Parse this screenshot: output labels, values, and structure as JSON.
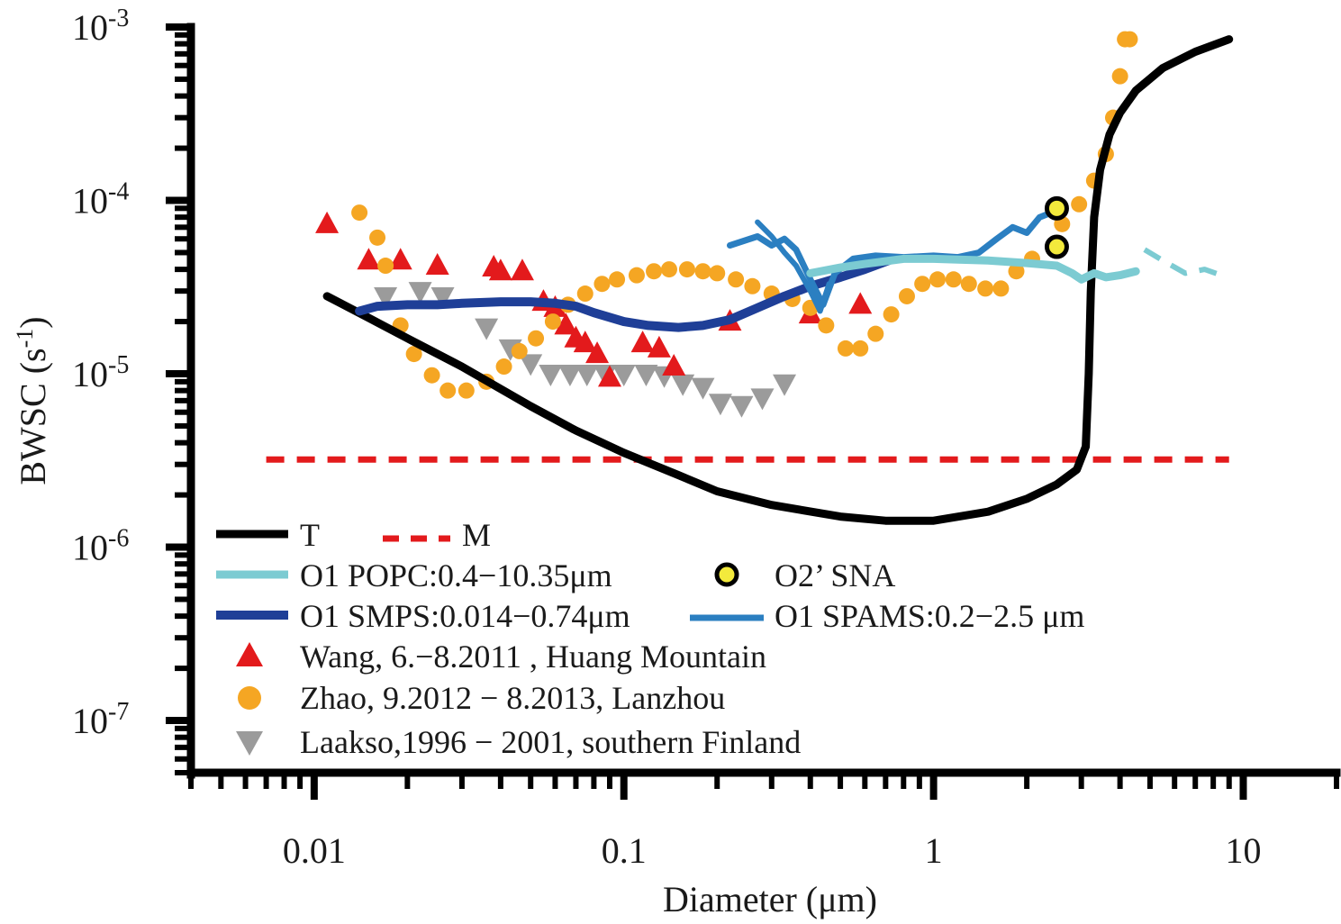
{
  "chart_data": {
    "type": "scatter",
    "title": "",
    "xlabel": "Diameter (μm)",
    "ylabel_main": "BWSC (s",
    "ylabel_sup": "-1",
    "ylabel_close": ")",
    "x_scale": "log",
    "y_scale": "log",
    "xlim": [
      0.004,
      20
    ],
    "ylim": [
      5e-08,
      0.001
    ],
    "x_ticks": [
      {
        "value": 0.01,
        "label": "0.01"
      },
      {
        "value": 0.1,
        "label": "0.1"
      },
      {
        "value": 1,
        "label": "1"
      },
      {
        "value": 10,
        "label": "10"
      }
    ],
    "y_ticks": [
      {
        "value": 1e-07,
        "base": "10",
        "exp": "-7"
      },
      {
        "value": 1e-06,
        "base": "10",
        "exp": "-6"
      },
      {
        "value": 1e-05,
        "base": "10",
        "exp": "-5"
      },
      {
        "value": 0.0001,
        "base": "10",
        "exp": "-4"
      },
      {
        "value": 0.001,
        "base": "10",
        "exp": "-3"
      }
    ],
    "grid": false,
    "legend_position": "bottom-left",
    "series": [
      {
        "key": "T",
        "name": "T",
        "kind": "line",
        "color": "#000000",
        "width": 9,
        "x": [
          0.011,
          0.015,
          0.02,
          0.03,
          0.05,
          0.07,
          0.1,
          0.15,
          0.2,
          0.3,
          0.5,
          0.7,
          1.0,
          1.5,
          2.0,
          2.5,
          2.9,
          3.1,
          3.17,
          3.22,
          3.3,
          3.45,
          3.7,
          4.0,
          4.5,
          5.5,
          7.0,
          9.0
        ],
        "y": [
          2.8e-05,
          2.1e-05,
          1.6e-05,
          1.1e-05,
          6.5e-06,
          4.7e-06,
          3.5e-06,
          2.6e-06,
          2.1e-06,
          1.75e-06,
          1.5e-06,
          1.42e-06,
          1.42e-06,
          1.6e-06,
          1.9e-06,
          2.3e-06,
          2.8e-06,
          3.8e-06,
          1e-05,
          3e-05,
          8e-05,
          0.00015,
          0.00024,
          0.00032,
          0.00043,
          0.00058,
          0.00072,
          0.00085
        ]
      },
      {
        "key": "M",
        "name": "M",
        "kind": "dashed",
        "color": "#e31a1c",
        "width": 7,
        "x": [
          0.007,
          9.0
        ],
        "y": [
          3.2e-06,
          3.2e-06
        ]
      },
      {
        "key": "POPC",
        "name": "O1 POPC:0.4−10.35μm",
        "kind": "line",
        "color": "#7ccbd2",
        "width": 9,
        "x": [
          0.4,
          0.5,
          0.6,
          0.8,
          1.0,
          1.2,
          1.5,
          2.0,
          2.5,
          2.8,
          3.0,
          3.3,
          3.6,
          4.0,
          4.5
        ],
        "y": [
          3.8e-05,
          4.1e-05,
          4.3e-05,
          4.6e-05,
          4.6e-05,
          4.55e-05,
          4.5e-05,
          4.35e-05,
          4.2e-05,
          3.8e-05,
          3.5e-05,
          3.8e-05,
          3.6e-05,
          3.7e-05,
          3.9e-05
        ]
      },
      {
        "key": "POPC_tail",
        "name": "",
        "kind": "dashed",
        "color": "#7ccbd2",
        "width": 6,
        "x": [
          4.8,
          5.5,
          6.5,
          7.5,
          8.5
        ],
        "y": [
          5.2e-05,
          4.5e-05,
          3.8e-05,
          4e-05,
          3.7e-05
        ]
      },
      {
        "key": "SMPS",
        "name": "O1 SMPS:0.014−0.74μm",
        "kind": "line",
        "color": "#1f3f97",
        "width": 10,
        "x": [
          0.014,
          0.016,
          0.02,
          0.025,
          0.03,
          0.04,
          0.05,
          0.06,
          0.07,
          0.08,
          0.1,
          0.12,
          0.15,
          0.18,
          0.22,
          0.27,
          0.33,
          0.4,
          0.5,
          0.6,
          0.74
        ],
        "y": [
          2.3e-05,
          2.45e-05,
          2.5e-05,
          2.5e-05,
          2.55e-05,
          2.6e-05,
          2.6e-05,
          2.55e-05,
          2.45e-05,
          2.25e-05,
          2e-05,
          1.9e-05,
          1.85e-05,
          1.9e-05,
          2.05e-05,
          2.4e-05,
          2.8e-05,
          3.2e-05,
          3.6e-05,
          4e-05,
          4.6e-05
        ]
      },
      {
        "key": "SPAMS",
        "name": "O1 SPAMS:0.2−2.5 μm",
        "kind": "line",
        "color": "#2b7fc1",
        "width": 7,
        "x": [
          0.22,
          0.27,
          0.3,
          0.33,
          0.36,
          0.4,
          0.44,
          0.48,
          0.55,
          0.65,
          0.8,
          1.0,
          1.2,
          1.4,
          1.6,
          1.8,
          2.0,
          2.2,
          2.4,
          2.5
        ],
        "y": [
          5.5e-05,
          6.2e-05,
          5.5e-05,
          6e-05,
          5.2e-05,
          3.5e-05,
          2.5e-05,
          3.8e-05,
          4.6e-05,
          4.8e-05,
          4.7e-05,
          4.8e-05,
          4.7e-05,
          5e-05,
          6e-05,
          7e-05,
          6.5e-05,
          8e-05,
          8.5e-05,
          9e-05
        ]
      },
      {
        "key": "SPAMS_b",
        "name": "",
        "kind": "line",
        "color": "#2b7fc1",
        "width": 6,
        "x": [
          0.27,
          0.3,
          0.33,
          0.36,
          0.4,
          0.43,
          0.46
        ],
        "y": [
          7.5e-05,
          6.2e-05,
          5e-05,
          4.2e-05,
          3e-05,
          2.3e-05,
          3.3e-05
        ]
      },
      {
        "key": "SNA",
        "name": "O2’ SNA",
        "kind": "circle",
        "color": "#f3ea3c",
        "stroke": "#000000",
        "x": [
          2.5,
          2.5
        ],
        "y": [
          9e-05,
          5.4e-05
        ]
      },
      {
        "key": "Wang",
        "name": "Wang, 6.−8.2011 , Huang Mountain",
        "kind": "triangle-up",
        "color": "#e31a1c",
        "x": [
          0.011,
          0.015,
          0.019,
          0.025,
          0.038,
          0.04,
          0.047,
          0.055,
          0.06,
          0.065,
          0.07,
          0.075,
          0.082,
          0.09,
          0.115,
          0.13,
          0.145,
          0.22,
          0.4,
          0.58
        ],
        "y": [
          7.3e-05,
          4.5e-05,
          4.5e-05,
          4.2e-05,
          4.1e-05,
          3.9e-05,
          3.9e-05,
          2.6e-05,
          2.4e-05,
          1.9e-05,
          1.6e-05,
          1.5e-05,
          1.3e-05,
          9.5e-06,
          1.5e-05,
          1.4e-05,
          1.1e-05,
          2e-05,
          2.2e-05,
          2.5e-05
        ]
      },
      {
        "key": "Zhao",
        "name": "Zhao, 9.2012 − 8.2013, Lanzhou",
        "kind": "circle",
        "color": "#f5a623",
        "x": [
          0.014,
          0.016,
          0.017,
          0.019,
          0.021,
          0.024,
          0.027,
          0.031,
          0.036,
          0.041,
          0.046,
          0.052,
          0.059,
          0.066,
          0.075,
          0.085,
          0.095,
          0.11,
          0.125,
          0.14,
          0.16,
          0.18,
          0.2,
          0.23,
          0.26,
          0.3,
          0.35,
          0.4,
          0.45,
          0.52,
          0.58,
          0.65,
          0.73,
          0.82,
          0.92,
          1.03,
          1.16,
          1.3,
          1.47,
          1.65,
          1.85,
          2.08,
          2.6,
          2.95,
          3.3,
          3.6,
          3.8,
          4.0,
          4.15,
          4.3
        ],
        "y": [
          8.5e-05,
          6.1e-05,
          4.2e-05,
          1.9e-05,
          1.3e-05,
          9.8e-06,
          8e-06,
          8e-06,
          9e-06,
          1.1e-05,
          1.35e-05,
          1.6e-05,
          2e-05,
          2.5e-05,
          2.9e-05,
          3.3e-05,
          3.5e-05,
          3.7e-05,
          3.9e-05,
          4e-05,
          4e-05,
          3.9e-05,
          3.8e-05,
          3.5e-05,
          3.2e-05,
          2.9e-05,
          2.7e-05,
          2.4e-05,
          1.9e-05,
          1.4e-05,
          1.4e-05,
          1.7e-05,
          2.2e-05,
          2.8e-05,
          3.3e-05,
          3.5e-05,
          3.5e-05,
          3.3e-05,
          3.1e-05,
          3.1e-05,
          3.9e-05,
          4.6e-05,
          7.3e-05,
          9.5e-05,
          0.00013,
          0.000185,
          0.0003,
          0.00052,
          0.00085,
          0.00085
        ]
      },
      {
        "key": "Laakso",
        "name": "Laakso,1996 − 2001, southern Finland",
        "kind": "triangle-down",
        "color": "#9b9b9b",
        "x": [
          0.017,
          0.022,
          0.026,
          0.036,
          0.043,
          0.05,
          0.058,
          0.067,
          0.076,
          0.087,
          0.1,
          0.118,
          0.135,
          0.155,
          0.18,
          0.205,
          0.24,
          0.28,
          0.33
        ],
        "y": [
          2.8e-05,
          3e-05,
          2.8e-05,
          1.85e-05,
          1.4e-05,
          1.15e-05,
          1e-05,
          1e-05,
          1e-05,
          1e-05,
          1e-05,
          1e-05,
          9.8e-06,
          8.8e-06,
          8.4e-06,
          6.8e-06,
          6.6e-06,
          7.3e-06,
          8.8e-06
        ]
      }
    ],
    "legend": {
      "T": "T",
      "M": "M",
      "POPC": "O1 POPC:0.4−10.35μm",
      "SNA": "O2’ SNA",
      "SMPS": "O1 SMPS:0.014−0.74μm",
      "SPAMS": "O1 SPAMS:0.2−2.5 μm",
      "Wang": "Wang, 6.−8.2011 , Huang Mountain",
      "Zhao": "Zhao, 9.2012 − 8.2013, Lanzhou",
      "Laakso": "Laakso,1996 − 2001, southern Finland"
    }
  }
}
